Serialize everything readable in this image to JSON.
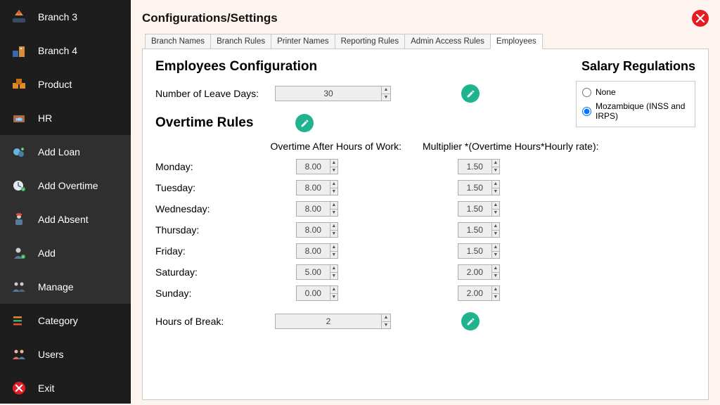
{
  "sidebar": {
    "items": [
      {
        "label": "Branch 3",
        "icon": "branch"
      },
      {
        "label": "Branch 4",
        "icon": "branch2"
      },
      {
        "label": "Product",
        "icon": "product"
      },
      {
        "label": "HR",
        "icon": "hr"
      },
      {
        "label": "Add Loan",
        "icon": "loan",
        "sub": true
      },
      {
        "label": "Add Overtime",
        "icon": "overtime",
        "sub": true
      },
      {
        "label": "Add Absent",
        "icon": "absent",
        "sub": true
      },
      {
        "label": "Add",
        "icon": "add",
        "sub": true
      },
      {
        "label": "Manage",
        "icon": "manage",
        "sub": true
      },
      {
        "label": "Category",
        "icon": "category"
      },
      {
        "label": "Users",
        "icon": "users"
      },
      {
        "label": "Exit",
        "icon": "exit"
      }
    ]
  },
  "header": {
    "title": "Configurations/Settings"
  },
  "tabs": [
    {
      "label": "Branch Names",
      "active": false
    },
    {
      "label": "Branch Rules",
      "active": false
    },
    {
      "label": "Printer Names",
      "active": false
    },
    {
      "label": "Reporting Rules",
      "active": false
    },
    {
      "label": "Admin Access Rules",
      "active": false
    },
    {
      "label": "Employees",
      "active": true
    }
  ],
  "employees": {
    "section_title": "Employees Configuration",
    "leave_label": "Number of Leave Days:",
    "leave_value": "30",
    "overtime_title": "Overtime Rules",
    "col_after": "Overtime After Hours of Work:",
    "col_mult": "Multiplier *(Overtime Hours*Hourly rate):",
    "days": [
      {
        "name": "Monday:",
        "after": "8.00",
        "mult": "1.50"
      },
      {
        "name": "Tuesday:",
        "after": "8.00",
        "mult": "1.50"
      },
      {
        "name": "Wednesday:",
        "after": "8.00",
        "mult": "1.50"
      },
      {
        "name": "Thursday:",
        "after": "8.00",
        "mult": "1.50"
      },
      {
        "name": "Friday:",
        "after": "8.00",
        "mult": "1.50"
      },
      {
        "name": "Saturday:",
        "after": "5.00",
        "mult": "2.00"
      },
      {
        "name": "Sunday:",
        "after": "0.00",
        "mult": "2.00"
      }
    ],
    "break_label": "Hours of Break:",
    "break_value": "2"
  },
  "regs": {
    "title": "Salary Regulations",
    "options": [
      {
        "label": "None",
        "checked": false
      },
      {
        "label": "Mozambique (INSS and IRPS)",
        "checked": true
      }
    ]
  },
  "colors": {
    "sidebar_bg": "#1d1d1d",
    "sidebar_sub_bg": "#2f2f2f",
    "panel_bg": "#ffffff",
    "body_bg": "#fdf4ef",
    "accent_green": "#1fb48e",
    "close_red": "#e51c23",
    "border": "#c9c9c9"
  }
}
